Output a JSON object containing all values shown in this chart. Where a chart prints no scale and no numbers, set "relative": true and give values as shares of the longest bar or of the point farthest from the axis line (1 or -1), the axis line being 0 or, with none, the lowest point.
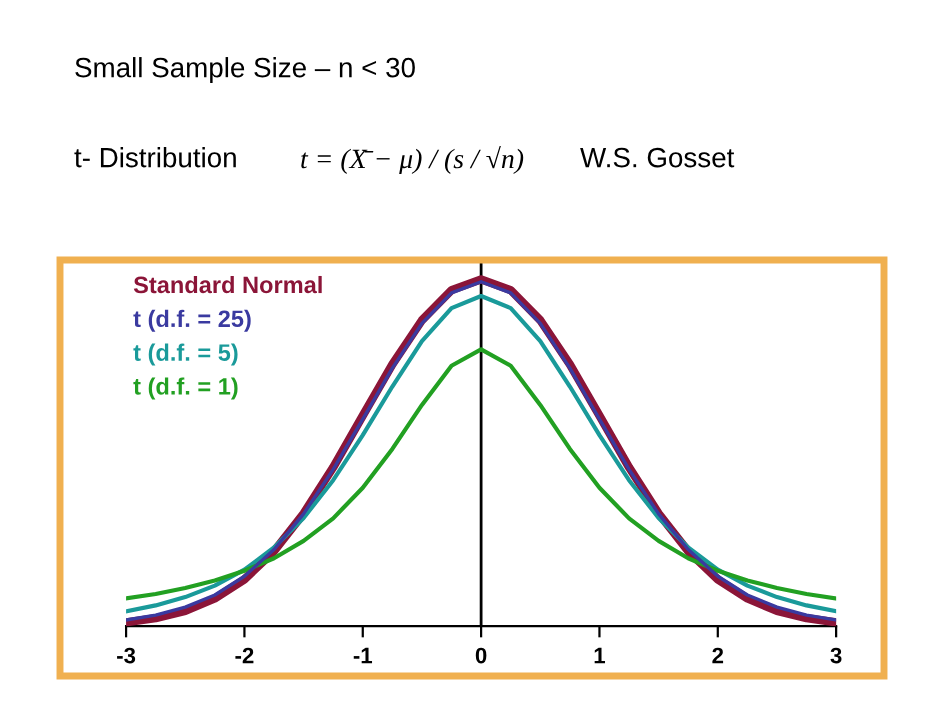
{
  "chart_data": {
    "type": "line",
    "relative": true,
    "title": "Small Sample Size – n < 30",
    "annotations": [
      "t- Distribution",
      "t = (X̄ − μ) / (s / √n)",
      "W.S. Gosset"
    ],
    "x": [
      -3,
      -2.75,
      -2.5,
      -2.25,
      -2,
      -1.75,
      -1.5,
      -1.25,
      -1,
      -0.75,
      -0.5,
      -0.25,
      0,
      0.25,
      0.5,
      0.75,
      1,
      1.25,
      1.5,
      1.75,
      2,
      2.25,
      2.5,
      2.75,
      3
    ],
    "xlim": [
      -3,
      3
    ],
    "xticks": [
      -3,
      -2,
      -1,
      0,
      1,
      2,
      3
    ],
    "grid": false,
    "ref_lines": [
      {
        "axis": "x",
        "value": 0,
        "color": "#000000"
      }
    ],
    "legend": "top left",
    "marker": "none",
    "line_style": "solid",
    "series": [
      {
        "name": "Standard Normal",
        "color": "#8b1538",
        "values": [
          0.011,
          0.023,
          0.044,
          0.08,
          0.135,
          0.216,
          0.325,
          0.458,
          0.607,
          0.755,
          0.882,
          0.969,
          1,
          0.969,
          0.882,
          0.755,
          0.607,
          0.458,
          0.325,
          0.216,
          0.135,
          0.08,
          0.044,
          0.023,
          0.011
        ]
      },
      {
        "name": "t (d.f. = 25)",
        "color": "#3a3aa0",
        "values": [
          0.018,
          0.032,
          0.055,
          0.09,
          0.144,
          0.221,
          0.324,
          0.452,
          0.597,
          0.744,
          0.873,
          0.961,
          0.993,
          0.961,
          0.873,
          0.744,
          0.597,
          0.452,
          0.324,
          0.221,
          0.144,
          0.09,
          0.055,
          0.032,
          0.018
        ]
      },
      {
        "name": "t (d.f. = 5)",
        "color": "#1a9a9a",
        "values": [
          0.043,
          0.06,
          0.084,
          0.117,
          0.163,
          0.227,
          0.312,
          0.421,
          0.551,
          0.691,
          0.822,
          0.917,
          0.952,
          0.917,
          0.822,
          0.691,
          0.551,
          0.421,
          0.312,
          0.227,
          0.163,
          0.117,
          0.084,
          0.06,
          0.043
        ]
      },
      {
        "name": "t (d.f. = 1)",
        "color": "#22a022",
        "values": [
          0.08,
          0.093,
          0.11,
          0.132,
          0.16,
          0.196,
          0.246,
          0.311,
          0.399,
          0.511,
          0.638,
          0.751,
          0.798,
          0.751,
          0.638,
          0.511,
          0.399,
          0.311,
          0.246,
          0.196,
          0.16,
          0.132,
          0.11,
          0.093,
          0.08
        ]
      }
    ]
  }
}
